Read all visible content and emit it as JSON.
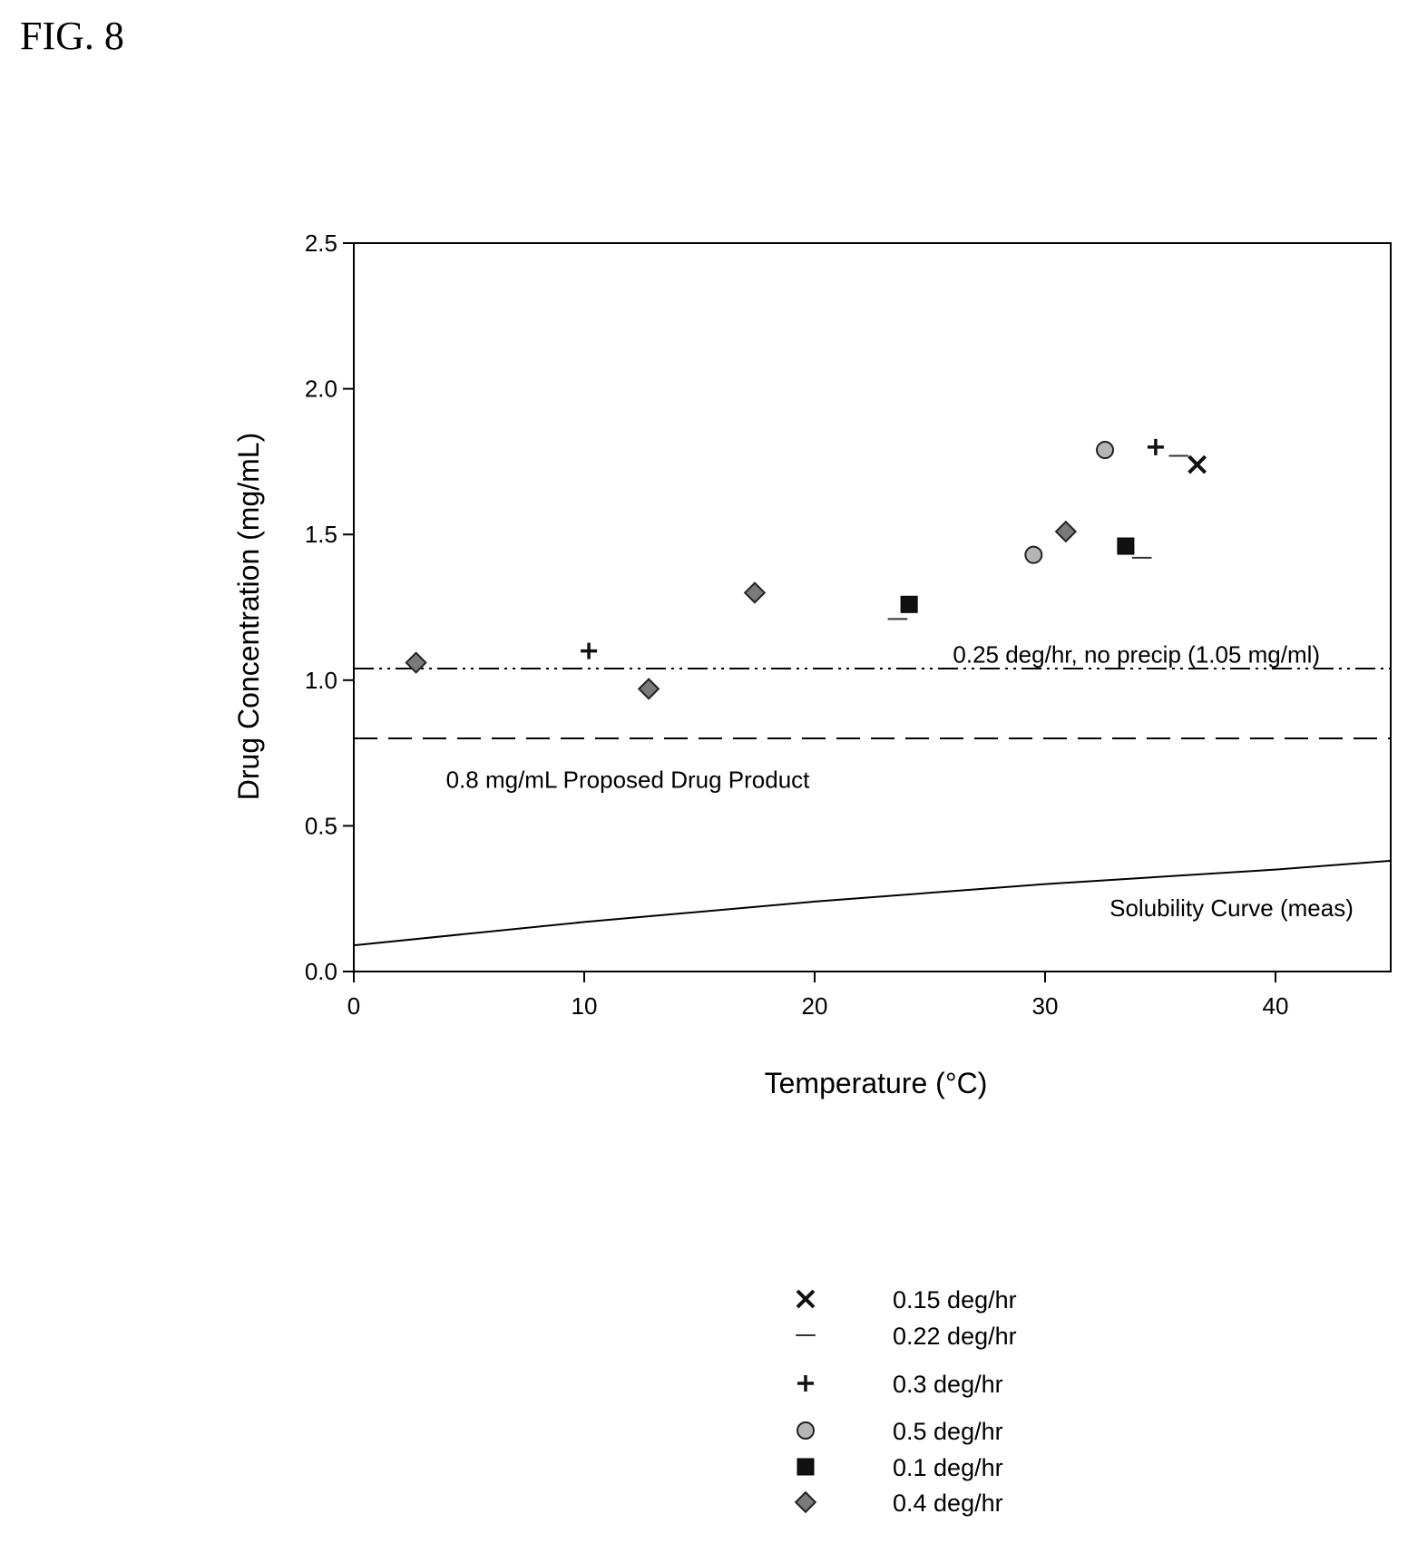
{
  "figure_label": "FIG. 8",
  "chart_data": {
    "type": "scatter",
    "title": "",
    "xlabel": "Temperature (°C)",
    "ylabel": "Drug Concentration (mg/mL)",
    "xlim": [
      0,
      45
    ],
    "ylim": [
      0,
      2.5
    ],
    "xticks": [
      0,
      10,
      20,
      30,
      40
    ],
    "xtick_labels": [
      "0",
      "10",
      "20",
      "30",
      "40"
    ],
    "yticks": [
      0,
      0.5,
      1.0,
      1.5,
      2.0,
      2.5
    ],
    "ytick_labels": [
      "0.0",
      "0.5",
      "1.0",
      "1.5",
      "2.0",
      "2.5"
    ],
    "grid": false,
    "legend_position": "bottom-center, below plot",
    "series": [
      {
        "name": "0.15 deg/hr",
        "marker": "x",
        "color": "#111111",
        "points": [
          {
            "x": 36.6,
            "y": 1.74
          }
        ]
      },
      {
        "name": "0.22 deg/hr",
        "marker": "dash",
        "color": "#333333",
        "points": [
          {
            "x": 23.6,
            "y": 1.21
          },
          {
            "x": 34.2,
            "y": 1.42
          },
          {
            "x": 35.8,
            "y": 1.77
          }
        ]
      },
      {
        "name": "0.3 deg/hr",
        "marker": "plus",
        "color": "#111111",
        "points": [
          {
            "x": 10.2,
            "y": 1.1
          },
          {
            "x": 34.8,
            "y": 1.8
          }
        ]
      },
      {
        "name": "0.5 deg/hr",
        "marker": "circle",
        "color": "#b5b5b5",
        "points": [
          {
            "x": 29.5,
            "y": 1.43
          },
          {
            "x": 32.6,
            "y": 1.79
          }
        ]
      },
      {
        "name": "0.1 deg/hr",
        "marker": "square",
        "color": "#111111",
        "points": [
          {
            "x": 24.1,
            "y": 1.26
          },
          {
            "x": 33.5,
            "y": 1.46
          }
        ]
      },
      {
        "name": "0.4 deg/hr",
        "marker": "diamond",
        "color": "#7a7a7a",
        "points": [
          {
            "x": 2.7,
            "y": 1.06
          },
          {
            "x": 12.8,
            "y": 0.97
          },
          {
            "x": 17.4,
            "y": 1.3
          },
          {
            "x": 30.9,
            "y": 1.51
          }
        ]
      }
    ],
    "reference_lines": [
      {
        "label": "0.25 deg/hr, no precip (1.05 mg/ml)",
        "style": "dash-dot-dot",
        "points": [
          [
            0,
            1.04
          ],
          [
            45,
            1.04
          ]
        ]
      },
      {
        "label": "0.8 mg/mL Proposed Drug Product",
        "style": "dashed",
        "points": [
          [
            0,
            0.8
          ],
          [
            45,
            0.8
          ]
        ]
      },
      {
        "label": "Solubility Curve (meas)",
        "style": "solid",
        "points": [
          [
            0,
            0.09
          ],
          [
            10,
            0.17
          ],
          [
            20,
            0.24
          ],
          [
            30,
            0.3
          ],
          [
            40,
            0.35
          ],
          [
            45,
            0.38
          ]
        ]
      }
    ]
  }
}
